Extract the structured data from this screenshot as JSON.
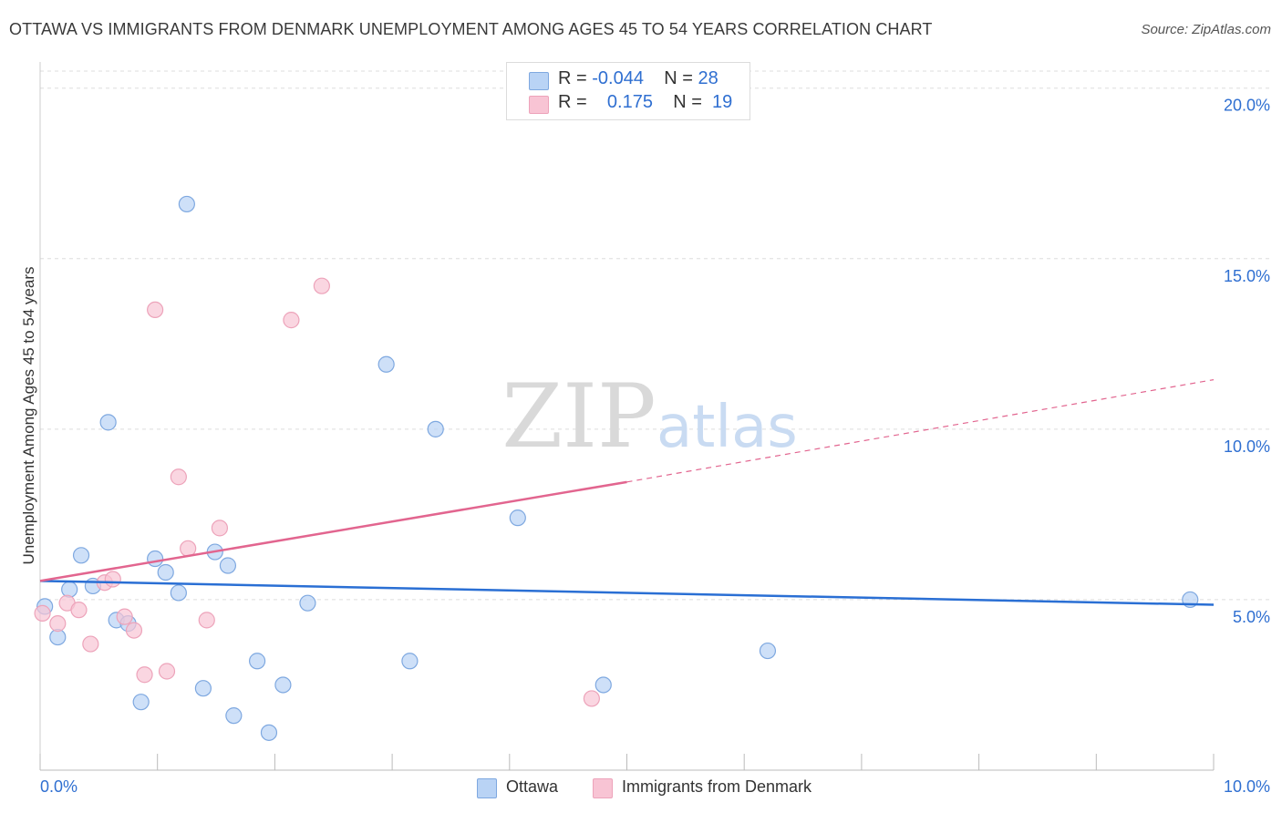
{
  "title": "OTTAWA VS IMMIGRANTS FROM DENMARK UNEMPLOYMENT AMONG AGES 45 TO 54 YEARS CORRELATION CHART",
  "source": "Source: ZipAtlas.com",
  "watermark": {
    "zip": "ZIP",
    "atlas": "atlas"
  },
  "legend": {
    "ottawa": {
      "r_label": "R =",
      "r_value": "-0.044",
      "n_label": "N =",
      "n_value": "28"
    },
    "denmark": {
      "r_label": "R =",
      "r_value": "0.175",
      "n_label": "N =",
      "n_value": "19"
    }
  },
  "bottom_legend": {
    "ottawa": "Ottawa",
    "denmark": "Immigrants from Denmark"
  },
  "colors": {
    "ottawa_fill": "#b9d3f5",
    "ottawa_stroke": "#7ea8e0",
    "ottawa_line": "#2a6fd4",
    "denmark_fill": "#f8c4d4",
    "denmark_stroke": "#eda3ba",
    "denmark_line": "#e2658f",
    "axis_text": "#2f6fd1",
    "grid": "#dddddd"
  },
  "chart_data": {
    "type": "scatter",
    "title": "OTTAWA VS IMMIGRANTS FROM DENMARK UNEMPLOYMENT AMONG AGES 45 TO 54 YEARS CORRELATION CHART",
    "xlabel": "",
    "ylabel": "Unemployment Among Ages 45 to 54 years",
    "xlim": [
      0,
      10
    ],
    "ylim": [
      0,
      20.5
    ],
    "x_tick_labels": [
      {
        "value": 0,
        "label": "0.0%"
      },
      {
        "value": 10,
        "label": "10.0%"
      }
    ],
    "y_tick_labels": [
      {
        "value": 5,
        "label": "5.0%"
      },
      {
        "value": 10,
        "label": "10.0%"
      },
      {
        "value": 15,
        "label": "15.0%"
      },
      {
        "value": 20,
        "label": "20.0%"
      }
    ],
    "grid": true,
    "series": [
      {
        "name": "Ottawa",
        "points": [
          {
            "x": 0.04,
            "y": 4.8
          },
          {
            "x": 0.15,
            "y": 3.9
          },
          {
            "x": 0.25,
            "y": 5.3
          },
          {
            "x": 0.35,
            "y": 6.3
          },
          {
            "x": 0.45,
            "y": 5.4
          },
          {
            "x": 0.58,
            "y": 10.2
          },
          {
            "x": 0.65,
            "y": 4.4
          },
          {
            "x": 0.75,
            "y": 4.3
          },
          {
            "x": 0.86,
            "y": 2.0
          },
          {
            "x": 0.98,
            "y": 6.2
          },
          {
            "x": 1.07,
            "y": 5.8
          },
          {
            "x": 1.18,
            "y": 5.2
          },
          {
            "x": 1.25,
            "y": 16.6
          },
          {
            "x": 1.39,
            "y": 2.4
          },
          {
            "x": 1.49,
            "y": 6.4
          },
          {
            "x": 1.6,
            "y": 6.0
          },
          {
            "x": 1.65,
            "y": 1.6
          },
          {
            "x": 1.85,
            "y": 3.2
          },
          {
            "x": 1.95,
            "y": 1.1
          },
          {
            "x": 2.07,
            "y": 2.5
          },
          {
            "x": 2.28,
            "y": 4.9
          },
          {
            "x": 2.95,
            "y": 11.9
          },
          {
            "x": 3.15,
            "y": 3.2
          },
          {
            "x": 3.37,
            "y": 10.0
          },
          {
            "x": 4.07,
            "y": 7.4
          },
          {
            "x": 4.8,
            "y": 2.5
          },
          {
            "x": 6.2,
            "y": 3.5
          },
          {
            "x": 9.8,
            "y": 5.0
          }
        ]
      },
      {
        "name": "Immigrants from Denmark",
        "points": [
          {
            "x": 0.02,
            "y": 4.6
          },
          {
            "x": 0.15,
            "y": 4.3
          },
          {
            "x": 0.23,
            "y": 4.9
          },
          {
            "x": 0.33,
            "y": 4.7
          },
          {
            "x": 0.43,
            "y": 3.7
          },
          {
            "x": 0.55,
            "y": 5.5
          },
          {
            "x": 0.62,
            "y": 5.6
          },
          {
            "x": 0.72,
            "y": 4.5
          },
          {
            "x": 0.8,
            "y": 4.1
          },
          {
            "x": 0.89,
            "y": 2.8
          },
          {
            "x": 0.98,
            "y": 13.5
          },
          {
            "x": 1.08,
            "y": 2.9
          },
          {
            "x": 1.18,
            "y": 8.6
          },
          {
            "x": 1.26,
            "y": 6.5
          },
          {
            "x": 1.42,
            "y": 4.4
          },
          {
            "x": 1.53,
            "y": 7.1
          },
          {
            "x": 2.14,
            "y": 13.2
          },
          {
            "x": 2.4,
            "y": 14.2
          },
          {
            "x": 4.7,
            "y": 2.1
          }
        ]
      }
    ],
    "trend_lines": [
      {
        "name": "Ottawa",
        "x": [
          0,
          10
        ],
        "y": [
          5.55,
          4.85
        ],
        "style": "solid"
      },
      {
        "name": "Immigrants from Denmark",
        "solid_x": [
          0,
          5.0
        ],
        "solid_y": [
          5.55,
          8.45
        ],
        "dashed_x": [
          5.0,
          10
        ],
        "dashed_y": [
          8.45,
          11.45
        ]
      }
    ]
  }
}
